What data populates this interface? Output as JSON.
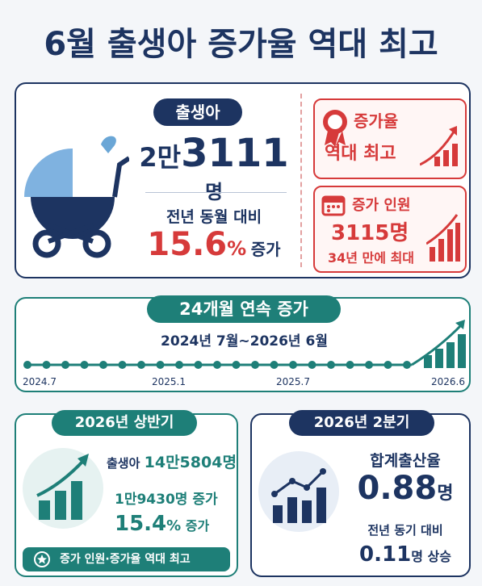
{
  "title": "6월 출생아 증가율 역대 최고",
  "monthly": {
    "badge": "출생아",
    "count_prefix": "2만",
    "count_number": "3111",
    "count_unit": "명",
    "compare_label": "전년 동월 대비",
    "rate_number": "15.6",
    "rate_unit": "%",
    "rate_suffix": "증가",
    "record_box": {
      "line1": "증가율",
      "line2": "역대 최고"
    },
    "increase_box": {
      "label": "증가 인원",
      "number": "3115명",
      "note": "34년 만에 최대"
    }
  },
  "streak": {
    "badge": "24개월 연속 증가",
    "period": "2024년 7월~2026년 6월",
    "timeline_labels": [
      "2024.7",
      "2025.1",
      "2025.7",
      "2026.6"
    ]
  },
  "half_year": {
    "badge": "2026년 상반기",
    "births_label": "출생아",
    "births_value": "14만5804명",
    "increase": "1만9430명 증가",
    "rate_number": "15.4",
    "rate_unit": "%",
    "rate_suffix": "증가",
    "footer": "증가 인원·증가율 역대 최고"
  },
  "quarter": {
    "badge": "2026년 2분기",
    "tfr_label": "합계출산율",
    "tfr_number": "0.88",
    "tfr_unit": "명",
    "compare_label": "전년 동기 대비",
    "change_number": "0.11",
    "change_unit": "명",
    "change_suffix": "상승"
  }
}
